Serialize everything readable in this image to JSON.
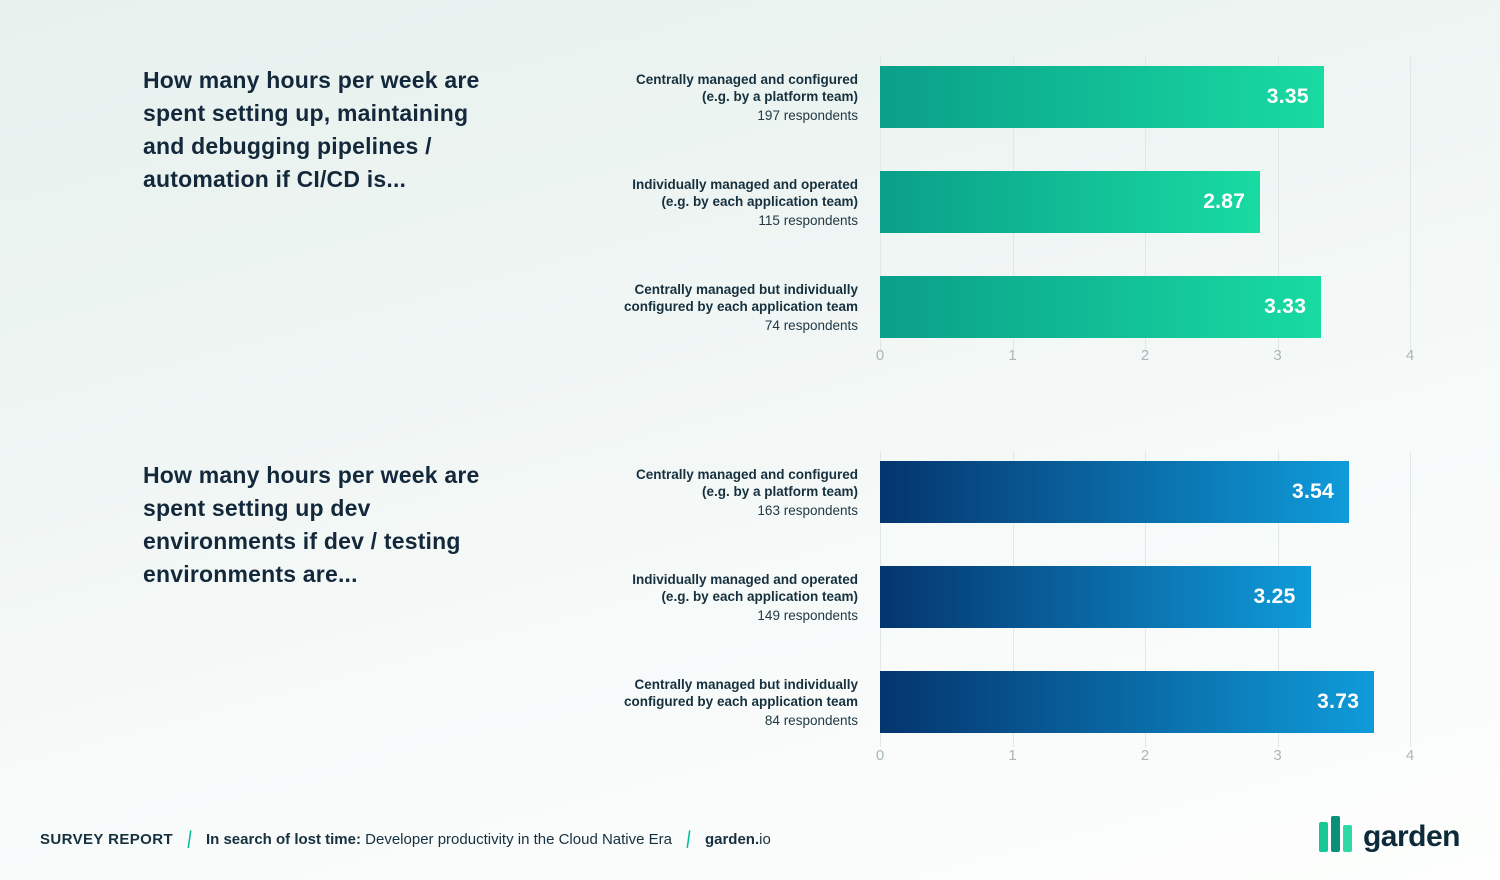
{
  "chart_data": [
    {
      "type": "bar",
      "orientation": "horizontal",
      "title": "How many hours per week are spent setting up, maintaining and debugging pipelines / automation if CI/CD is...",
      "categories": [
        "Centrally managed and configured (e.g. by a platform team)",
        "Individually managed and operated (e.g. by each application team)",
        "Centrally managed but individually configured by each application team"
      ],
      "respondents": [
        "197 respondents",
        "115 respondents",
        "74 respondents"
      ],
      "values": [
        3.35,
        2.87,
        3.33
      ],
      "value_labels": [
        "3.35",
        "2.87",
        "3.33"
      ],
      "xlim": [
        0,
        4
      ],
      "xticks": [
        "0",
        "1",
        "2",
        "3",
        "4"
      ],
      "grid": true,
      "legend": false,
      "bar_gradient": [
        "#0a9f89",
        "#18dba2"
      ],
      "value_label_color": "#ffffff"
    },
    {
      "type": "bar",
      "orientation": "horizontal",
      "title": "How many hours per week are spent setting up dev environments if dev / testing environments are...",
      "categories": [
        "Centrally managed and configured (e.g. by a platform team)",
        "Individually managed and operated (e.g. by each application team)",
        "Centrally managed but individually configured by each application team"
      ],
      "respondents": [
        "163 respondents",
        "149 respondents",
        "84 respondents"
      ],
      "values": [
        3.54,
        3.25,
        3.73
      ],
      "value_labels": [
        "3.54",
        "3.25",
        "3.73"
      ],
      "xlim": [
        0,
        4
      ],
      "xticks": [
        "0",
        "1",
        "2",
        "3",
        "4"
      ],
      "grid": true,
      "legend": false,
      "bar_gradient": [
        "#04356e",
        "#0f9bd9"
      ],
      "value_label_color": "#ffffff"
    }
  ],
  "footer": {
    "kicker": "SURVEY REPORT",
    "divider": "|",
    "report_title_bold": "In search of lost time:",
    "report_title_rest": " Developer productivity in the Cloud Native Era",
    "brand_bold": "garden.",
    "brand_rest": "io",
    "logo_wordmark": "garden"
  }
}
